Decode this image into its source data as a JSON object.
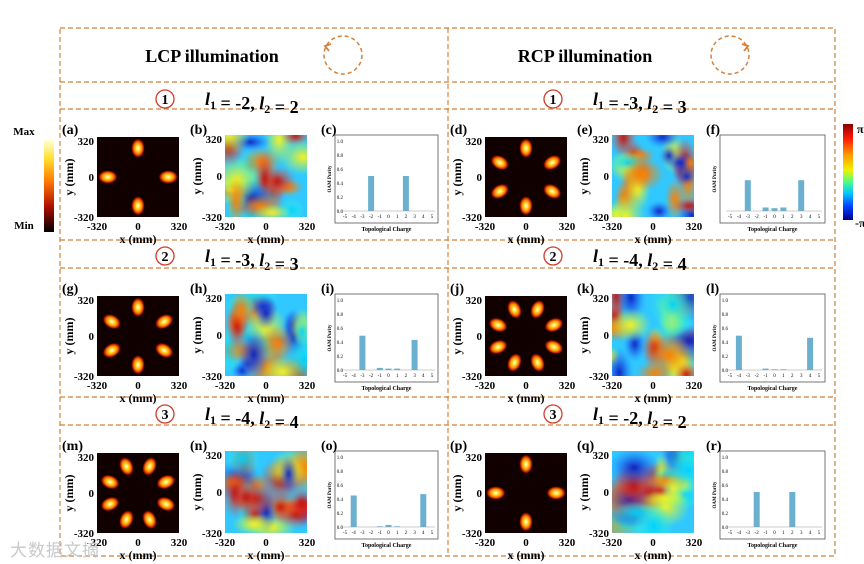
{
  "header": {
    "left_title": "LCP illumination",
    "right_title": "RCP illumination",
    "left_circle_icon": "counterclockwise-circle-arrow-icon",
    "right_circle_icon": "clockwise-circle-arrow-icon"
  },
  "colorbar_left": {
    "max_label": "Max",
    "min_label": "Min"
  },
  "colorbar_right": {
    "max_label": "π",
    "min_label": "-π"
  },
  "axis": {
    "tick_neg": "-320",
    "tick_zero": "0",
    "tick_pos": "320",
    "xlabel": "x (mm)",
    "ylabel": "y (mm)"
  },
  "rows": [
    {
      "left": {
        "circle": "1",
        "l1": "-2",
        "l2": "2"
      },
      "right": {
        "circle": "1",
        "l1": "-3",
        "l2": "3"
      }
    },
    {
      "left": {
        "circle": "2",
        "l1": "-3",
        "l2": "3"
      },
      "right": {
        "circle": "2",
        "l1": "-4",
        "l2": "4"
      }
    },
    {
      "left": {
        "circle": "3",
        "l1": "-4",
        "l2": "4"
      },
      "right": {
        "circle": "3",
        "l1": "-2",
        "l2": "2"
      }
    }
  ],
  "panels": {
    "letters": [
      [
        "(a)",
        "(b)",
        "(c)",
        "(d)",
        "(e)",
        "(f)"
      ],
      [
        "(g)",
        "(h)",
        "(i)",
        "(j)",
        "(k)",
        "(l)"
      ],
      [
        "(m)",
        "(n)",
        "(o)",
        "(p)",
        "(q)",
        "(r)"
      ]
    ]
  },
  "watermark": "大数据文摘",
  "chart_data": [
    {
      "panel": "(c)",
      "type": "bar",
      "xlabel": "Topological Charge",
      "ylabel": "OAM Purity",
      "ylim": [
        0,
        1.0
      ],
      "yticks": [
        "0.0",
        "0.2",
        "0.4",
        "0.6",
        "0.8",
        "1.0"
      ],
      "categories": [
        "-5",
        "-4",
        "-3",
        "-2",
        "-1",
        "0",
        "1",
        "2",
        "3",
        "4",
        "5"
      ],
      "values": [
        0,
        0,
        0,
        0.5,
        0,
        0,
        0,
        0.5,
        0,
        0,
        0
      ]
    },
    {
      "panel": "(f)",
      "type": "bar",
      "xlabel": "Topological Charge",
      "ylabel": "OAM Purity",
      "ylim": [
        0,
        1.0
      ],
      "yticks": [],
      "categories": [
        "-5",
        "-4",
        "-3",
        "-2",
        "-1",
        "0",
        "1",
        "2",
        "3",
        "4",
        "5"
      ],
      "values": [
        0,
        0,
        0.44,
        0,
        0.05,
        0.04,
        0.05,
        0,
        0.44,
        0,
        0
      ]
    },
    {
      "panel": "(i)",
      "type": "bar",
      "xlabel": "Topological Charge",
      "ylabel": "OAM Purity",
      "ylim": [
        0,
        1.0
      ],
      "yticks": [
        "0.0",
        "0.2",
        "0.4",
        "0.6",
        "0.8",
        "1.0"
      ],
      "categories": [
        "-5",
        "-4",
        "-3",
        "-2",
        "-1",
        "0",
        "1",
        "2",
        "3",
        "4",
        "5"
      ],
      "values": [
        0,
        0,
        0.49,
        0,
        0.03,
        0.02,
        0.02,
        0,
        0.43,
        0,
        0
      ]
    },
    {
      "panel": "(l)",
      "type": "bar",
      "xlabel": "Topological Charge",
      "ylabel": "OAM Purity",
      "ylim": [
        0,
        1.0
      ],
      "yticks": [
        "0.0",
        "0.2",
        "0.4",
        "0.6",
        "0.8",
        "1.0"
      ],
      "categories": [
        "-5",
        "-4",
        "-3",
        "-2",
        "-1",
        "0",
        "1",
        "2",
        "3",
        "4",
        "5"
      ],
      "values": [
        0,
        0.49,
        0,
        0,
        0.02,
        0.01,
        0.01,
        0,
        0,
        0.46,
        0
      ]
    },
    {
      "panel": "(o)",
      "type": "bar",
      "xlabel": "Topological Charge",
      "ylabel": "OAM Purity",
      "ylim": [
        0,
        1.0
      ],
      "yticks": [
        "0.0",
        "0.2",
        "0.4",
        "0.6",
        "0.8",
        "1.0"
      ],
      "categories": [
        "-5",
        "-4",
        "-3",
        "-2",
        "-1",
        "0",
        "1",
        "2",
        "3",
        "4",
        "5"
      ],
      "values": [
        0,
        0.45,
        0,
        0,
        0.01,
        0.03,
        0.01,
        0,
        0,
        0.47,
        0
      ]
    },
    {
      "panel": "(r)",
      "type": "bar",
      "xlabel": "Topological Charge",
      "ylabel": "OAM Purity",
      "ylim": [
        0,
        1.0
      ],
      "yticks": [
        "0.0",
        "0.2",
        "0.4",
        "0.6",
        "0.8",
        "1.0"
      ],
      "categories": [
        "-5",
        "-4",
        "-3",
        "-2",
        "-1",
        "0",
        "1",
        "2",
        "3",
        "4",
        "5"
      ],
      "values": [
        0,
        0,
        0,
        0.5,
        0,
        0,
        0,
        0.5,
        0,
        0,
        0
      ]
    }
  ]
}
